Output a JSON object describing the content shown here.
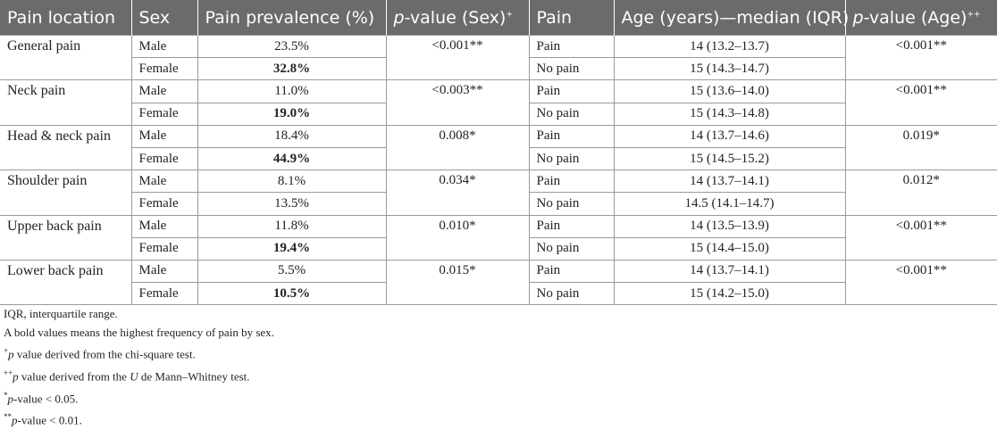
{
  "header": {
    "location": "Pain location",
    "sex": "Sex",
    "prevalence": "Pain prevalence (%)",
    "pvalue_sex_p": "p",
    "pvalue_sex_rest": "-value (Sex)",
    "pvalue_sex_sup": "+",
    "pain": "Pain",
    "age": "Age (years)—median (IQR)",
    "pvalue_age_p": "p",
    "pvalue_age_rest": "-value (Age)",
    "pvalue_age_sup": "++"
  },
  "rows": [
    {
      "location": "General pain",
      "male_prev": "23.5%",
      "female_prev": "32.8%",
      "p_sex": "<0.001**",
      "pain_label": "Pain",
      "pain_age": "14 (13.2–13.7)",
      "nopain_label": "No pain",
      "nopain_age": "15 (14.3–14.7)",
      "p_age": "<0.001**"
    },
    {
      "location": "Neck pain",
      "male_prev": "11.0%",
      "female_prev": "19.0%",
      "p_sex": "<0.003**",
      "pain_label": "Pain",
      "pain_age": "15 (13.6–14.0)",
      "nopain_label": "No pain",
      "nopain_age": "15 (14.3–14.8)",
      "p_age": "<0.001**"
    },
    {
      "location": "Head & neck pain",
      "male_prev": "18.4%",
      "female_prev": "44.9%",
      "p_sex": "0.008*",
      "pain_label": "Pain",
      "pain_age": "14 (13.7–14.6)",
      "nopain_label": "No pain",
      "nopain_age": "15 (14.5–15.2)",
      "p_age": "0.019*"
    },
    {
      "location": "Shoulder pain",
      "male_prev": "8.1%",
      "female_prev": "13.5%",
      "p_sex": "0.034*",
      "pain_label": "Pain",
      "pain_age": "14 (13.7–14.1)",
      "nopain_label": "No pain",
      "nopain_age": "14.5 (14.1–14.7)",
      "p_age": "0.012*"
    },
    {
      "location": "Upper back pain",
      "male_prev": "11.8%",
      "female_prev": "19.4%",
      "p_sex": "0.010*",
      "pain_label": "Pain",
      "pain_age": "14 (13.5–13.9)",
      "nopain_label": "No pain",
      "nopain_age": "15 (14.4–15.0)",
      "p_age": "<0.001**"
    },
    {
      "location": "Lower back pain",
      "male_prev": "5.5%",
      "female_prev": "10.5%",
      "p_sex": "0.015*",
      "pain_label": "Pain",
      "pain_age": "14 (13.7–14.1)",
      "nopain_label": "No pain",
      "nopain_age": "15 (14.2–15.0)",
      "p_age": "<0.001**"
    }
  ],
  "labels": {
    "male": "Male",
    "female": "Female"
  },
  "footnotes": {
    "iqr": "IQR, interquartile range.",
    "bold": "A bold values means the highest frequency of pain by sex.",
    "chi_sup": "+",
    "chi_p": "p",
    "chi_rest": " value derived from the chi-square test.",
    "mw_sup": "++",
    "mw_p": "p",
    "mw_mid": " value derived from the ",
    "mw_u": "U",
    "mw_rest": " de Mann–Whitney test.",
    "sig1_star": "*",
    "sig1_p": "p",
    "sig1_rest": "-value < 0.05.",
    "sig2_star": "**",
    "sig2_p": "p",
    "sig2_rest": "-value < 0.01."
  },
  "colors": {
    "header_bg": "#6b6b6b",
    "header_text": "#ffffff",
    "grid": "#9a9a9a"
  }
}
